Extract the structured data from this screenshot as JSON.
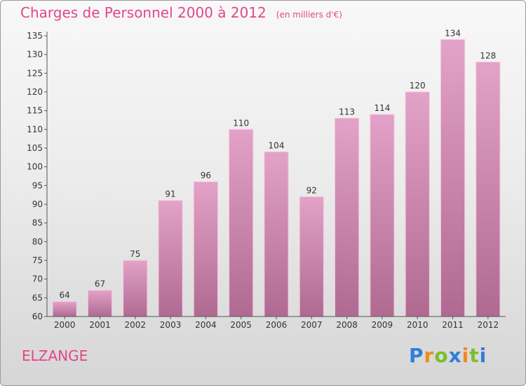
{
  "chart_data": {
    "type": "bar",
    "title": "Charges de Personnel 2000 à 2012",
    "subtitle": "(en milliers d'€)",
    "categories": [
      "2000",
      "2001",
      "2002",
      "2003",
      "2004",
      "2005",
      "2006",
      "2007",
      "2008",
      "2009",
      "2010",
      "2011",
      "2012"
    ],
    "values": [
      64,
      67,
      75,
      91,
      96,
      110,
      104,
      92,
      113,
      114,
      120,
      134,
      128
    ],
    "ylim": [
      60,
      135
    ],
    "yticks": [
      60,
      65,
      70,
      75,
      80,
      85,
      90,
      95,
      100,
      105,
      110,
      115,
      120,
      125,
      130,
      135
    ],
    "grid": false,
    "bar_color": "#d88ab3"
  },
  "commune": "ELZANGE",
  "brand": {
    "letters": [
      "P",
      "r",
      "o",
      "x",
      "i",
      "t",
      "i"
    ],
    "colors": [
      "#2f7fd8",
      "#f08a1c",
      "#7bbf2a",
      "#2f7fd8",
      "#f08a1c",
      "#7bbf2a",
      "#2f7fd8"
    ]
  },
  "colors": {
    "title": "#e2478a",
    "axis": "#555555"
  }
}
